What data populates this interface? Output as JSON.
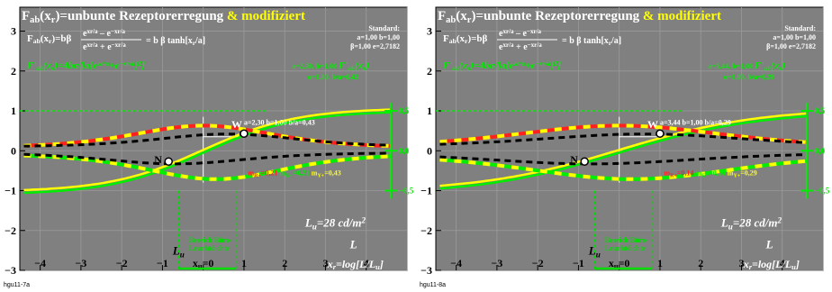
{
  "chart_data": [
    {
      "type": "line",
      "title": "F_ab(x_r)=unbunte Rezeptorerregung",
      "title_suffix": "& modifiziert",
      "formula_F": "F_ab(x_r)=bβ(e^(x_r/a) − e^(−x_r/a))/(e^(x_r/a) + e^(−x_r/a)) = b β tanh[x_r/a]",
      "formula_F_lhs": "F",
      "formula_F_mid": "(x",
      "formula_F_eq": ")=bβ",
      "formula_F_num": "e",
      "formula_F_den": "e",
      "formula_F_tanh": "= b β tanh[x",
      "formula_F_tanh_end": "/a]",
      "formula_Fp": "F'_ab(x_r)=4bα/[a{e^(x_r/a)+e^(−x_r/a)}²]",
      "standard_label": "Standard:",
      "standard_line1": "a=1,00 b=1,00",
      "standard_line2": "β=1,00 e=2,7182",
      "params_line1": "a=2,30, b=1,00",
      "params_line2": "α=1,00, b/a=0,43",
      "curve_label": "a=2,30 b=1,00 b/a=0,43",
      "slopes": {
        "r": "m_R+=0,21",
        "g": "m_G-=0,21",
        "y": "m_Y+=0,43"
      },
      "luminance": "L_u=28 cd/m²",
      "bereich": [
        "Bereich Büro-",
        "Leuchtdichte"
      ],
      "point_W": "W",
      "point_N": "N",
      "xlabel": "x_r=log[L/L_u]",
      "x_tick_labels": [
        "-4",
        "-3",
        "-2",
        "-1",
        "x_u=0",
        "1",
        "2",
        "3",
        "4"
      ],
      "y_tick_labels": [
        "-3",
        "-2",
        "-1",
        "0",
        "1",
        "2",
        "3"
      ],
      "right_ticks": [
        "0,5",
        "0,0",
        "-0,5"
      ],
      "caption": "hgu11-7a",
      "a": 2.3,
      "xlim": [
        -4.5,
        5.0
      ],
      "ylim": [
        -3.0,
        3.6
      ],
      "grid": true
    },
    {
      "type": "line",
      "title": "F_ab(x_r)=unbunte Rezeptorerregung",
      "title_suffix": "& modifiziert",
      "formula_F_lhs": "F",
      "formula_F_mid": "(x",
      "formula_F_eq": ")=bβ",
      "formula_F_num": "e",
      "formula_F_den": "e",
      "formula_F_tanh": "= b β tanh[x",
      "formula_F_tanh_end": "/a]",
      "standard_label": "Standard:",
      "standard_line1": "a=1,00 b=1,00",
      "standard_line2": "β=1,00 e=2,7182",
      "params_line1": "a=3,44, b=1,00",
      "params_line2": "α=1,00, b/a=0,29",
      "curve_label": "a=3,44 b=1,00 b/a=0,29",
      "slopes": {
        "r": "m_R+=0,14",
        "g": "m_G-=0,14",
        "y": "m_Y+=0,29"
      },
      "luminance": "L_u=28 cd/m²",
      "bereich": [
        "Bereich Büro-",
        "Leuchtdichte"
      ],
      "point_W": "W",
      "point_N": "N",
      "xlabel": "x_r=log[L/L_u]",
      "x_tick_labels": [
        "-4",
        "-3",
        "-2",
        "-1",
        "x_u=0",
        "1",
        "2",
        "3",
        "4"
      ],
      "y_tick_labels": [
        "-3",
        "-2",
        "-1",
        "0",
        "1",
        "2",
        "3"
      ],
      "right_ticks": [
        "0,5",
        "0,0",
        "-0,5"
      ],
      "caption": "hgu11-8a",
      "a": 3.44,
      "xlim": [
        -4.5,
        5.0
      ],
      "ylim": [
        -3.0,
        3.6
      ],
      "grid": true
    }
  ]
}
